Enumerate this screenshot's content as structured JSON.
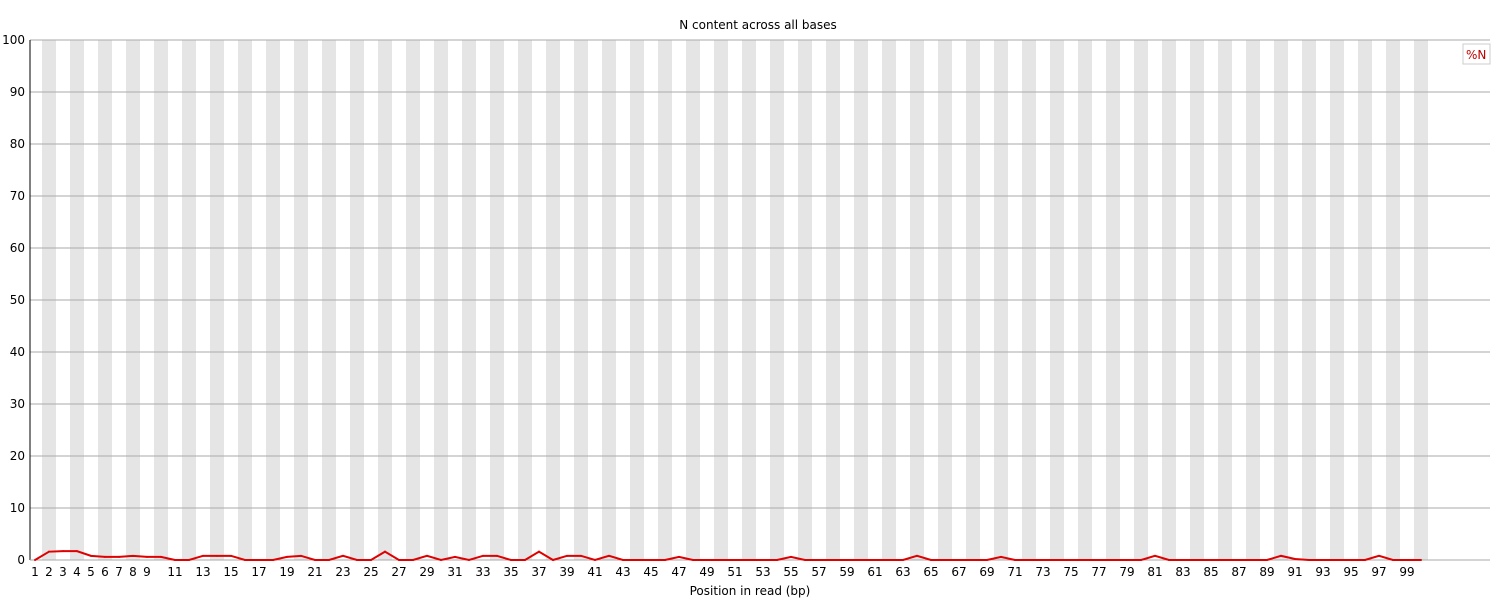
{
  "chart_data": {
    "type": "line",
    "title": "N content across all bases",
    "xlabel": "Position in read (bp)",
    "ylabel": "",
    "ylim": [
      0,
      100
    ],
    "yticks": [
      0,
      10,
      20,
      30,
      40,
      50,
      60,
      70,
      80,
      90,
      100
    ],
    "grid": true,
    "legend_position": "top-right",
    "categories": [
      1,
      2,
      3,
      4,
      5,
      6,
      7,
      8,
      9,
      10,
      11,
      12,
      13,
      14,
      15,
      16,
      17,
      18,
      19,
      20,
      21,
      22,
      23,
      24,
      25,
      26,
      27,
      28,
      29,
      30,
      31,
      32,
      33,
      34,
      35,
      36,
      37,
      38,
      39,
      40,
      41,
      42,
      43,
      44,
      45,
      46,
      47,
      48,
      49,
      50,
      51,
      52,
      53,
      54,
      55,
      56,
      57,
      58,
      59,
      60,
      61,
      62,
      63,
      64,
      65,
      66,
      67,
      68,
      69,
      70,
      71,
      72,
      73,
      74,
      75,
      76,
      77,
      78,
      79,
      80,
      81,
      82,
      83,
      84,
      85,
      86,
      87,
      88,
      89,
      90,
      91,
      92,
      93,
      94,
      95,
      96,
      97,
      98,
      99,
      100
    ],
    "xtick_labels": [
      "1",
      "2",
      "3",
      "4",
      "5",
      "6",
      "7",
      "8",
      "9",
      "11",
      "13",
      "15",
      "17",
      "19",
      "21",
      "23",
      "25",
      "27",
      "29",
      "31",
      "33",
      "35",
      "37",
      "39",
      "41",
      "43",
      "45",
      "47",
      "49",
      "51",
      "53",
      "55",
      "57",
      "59",
      "61",
      "63",
      "65",
      "67",
      "69",
      "71",
      "73",
      "75",
      "77",
      "79",
      "81",
      "83",
      "85",
      "87",
      "89",
      "91",
      "93",
      "95",
      "97",
      "99"
    ],
    "series": [
      {
        "name": "%N",
        "color": "#e00000",
        "values": [
          0,
          1.6,
          1.7,
          1.7,
          0.8,
          0.6,
          0.6,
          0.8,
          0.6,
          0.6,
          0,
          0,
          0.8,
          0.8,
          0.8,
          0,
          0,
          0,
          0.6,
          0.8,
          0,
          0,
          0.8,
          0,
          0,
          1.6,
          0,
          0,
          0.8,
          0,
          0.6,
          0,
          0.8,
          0.8,
          0,
          0,
          1.6,
          0,
          0.8,
          0.8,
          0,
          0.8,
          0,
          0,
          0,
          0,
          0.6,
          0,
          0,
          0,
          0,
          0,
          0,
          0,
          0.6,
          0,
          0,
          0,
          0,
          0,
          0,
          0,
          0,
          0.8,
          0,
          0,
          0,
          0,
          0,
          0.6,
          0,
          0,
          0,
          0,
          0,
          0,
          0,
          0,
          0,
          0,
          0.8,
          0,
          0,
          0,
          0,
          0,
          0,
          0,
          0,
          0.8,
          0.2,
          0,
          0,
          0,
          0,
          0,
          0.8,
          0,
          0,
          0
        ]
      }
    ]
  }
}
